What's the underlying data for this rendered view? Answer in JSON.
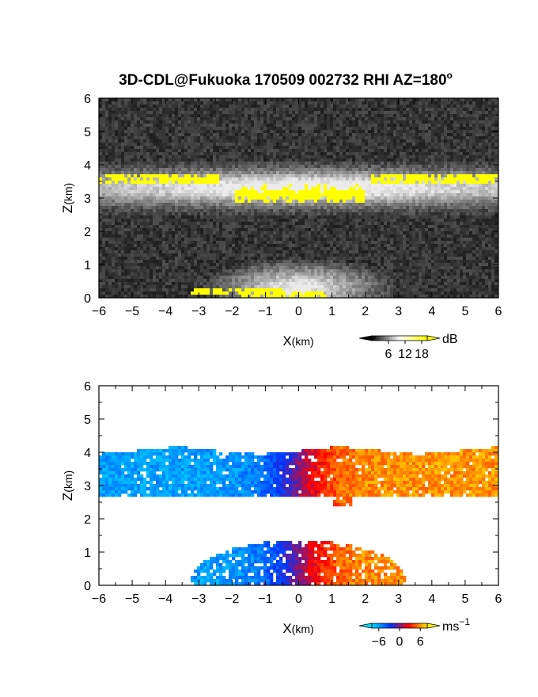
{
  "title": "3D-CDL@Fukuoka 170509 002732 RHI AZ=180",
  "title_superscript": "o",
  "chart_data": [
    {
      "type": "heatmap",
      "name": "reflectivity",
      "xlabel": "X",
      "xlabel_unit": "(km)",
      "ylabel": "Z",
      "ylabel_unit": "(km)",
      "xlim": [
        -6,
        6
      ],
      "ylim": [
        0,
        6
      ],
      "xticks": [
        "−6",
        "−5",
        "−4",
        "−3",
        "−2",
        "−1",
        "0",
        "1",
        "2",
        "3",
        "4",
        "5",
        "6"
      ],
      "yticks": [
        "0",
        "1",
        "2",
        "3",
        "4",
        "5",
        "6"
      ],
      "colorbar": {
        "unit": "dB",
        "ticks": [
          "6",
          "12",
          "18"
        ],
        "range": [
          0,
          20
        ],
        "colors": [
          "#000000",
          "#ffffff",
          "#ffff00"
        ]
      }
    },
    {
      "type": "heatmap",
      "name": "doppler-velocity",
      "xlabel": "X",
      "xlabel_unit": "(km)",
      "ylabel": "Z",
      "ylabel_unit": "(km)",
      "xlim": [
        -6,
        6
      ],
      "ylim": [
        0,
        6
      ],
      "xticks": [
        "−6",
        "−5",
        "−4",
        "−3",
        "−2",
        "−1",
        "0",
        "1",
        "2",
        "3",
        "4",
        "5",
        "6"
      ],
      "yticks": [
        "0",
        "1",
        "2",
        "3",
        "4",
        "5",
        "6"
      ],
      "colorbar": {
        "unit": "ms",
        "unit_superscript": "−1",
        "ticks": [
          "−6",
          "0",
          "6"
        ],
        "range": [
          -8,
          8
        ],
        "colors": [
          "#00e0ff",
          "#0033ff",
          "#ff0000",
          "#ffee00"
        ]
      }
    }
  ]
}
